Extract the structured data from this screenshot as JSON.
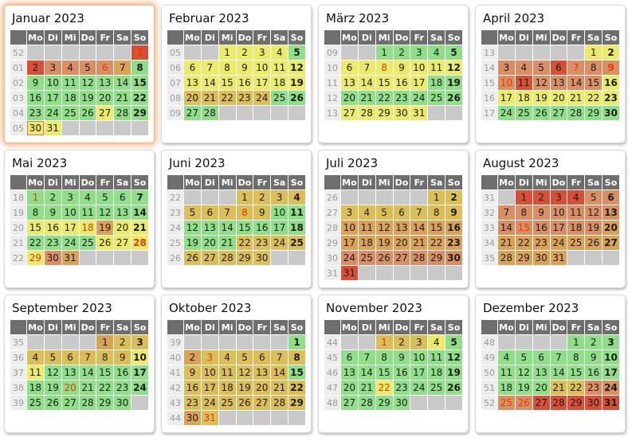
{
  "calendar": {
    "year": "2023",
    "weekday_headers": [
      "Mo",
      "Di",
      "Mi",
      "Do",
      "Fr",
      "Sa",
      "So"
    ],
    "colors": {
      "green": "#8fdf88",
      "yellow": "#ebeb6b",
      "gold": "#dcbe58",
      "tan": "#d9a257",
      "salmon": "#d98e63",
      "red": "#d94f35",
      "empty": "#c9c9c9",
      "header_bg": "#6e6e6e",
      "weekcol_bg": "#ededed",
      "holiday_text": "#e33b00",
      "today_border": "#e2705a",
      "highlight_glow": "#f6944a"
    },
    "months": [
      {
        "name": "Januar 2023",
        "highlight": true,
        "weeks": [
          {
            "wn": "52",
            "days": [
              null,
              null,
              null,
              null,
              null,
              null,
              "1|red|h"
            ]
          },
          {
            "wn": "01",
            "days": [
              "2|red",
              "3|salmon",
              "4|salmon",
              "5|salmon",
              "6|salmon|h",
              "7|tan",
              "8|green"
            ]
          },
          {
            "wn": "02",
            "days": [
              "9|green",
              "10|green",
              "11|green",
              "12|green",
              "13|green",
              "14|green",
              "15|green"
            ]
          },
          {
            "wn": "03",
            "days": [
              "16|green",
              "17|green",
              "18|green",
              "19|green",
              "20|green",
              "21|green",
              "22|green"
            ]
          },
          {
            "wn": "04",
            "days": [
              "23|green",
              "24|green",
              "25|green",
              "26|green",
              "27|yellow",
              "28|green",
              "29|green"
            ]
          },
          {
            "wn": "05",
            "days": [
              "30|yellow|t",
              "31|yellow",
              null,
              null,
              null,
              null,
              null
            ]
          }
        ]
      },
      {
        "name": "Februar 2023",
        "highlight": false,
        "weeks": [
          {
            "wn": "05",
            "days": [
              null,
              null,
              "1|yellow",
              "2|yellow",
              "3|yellow",
              "4|yellow",
              "5|green"
            ]
          },
          {
            "wn": "06",
            "days": [
              "6|yellow",
              "7|yellow",
              "8|yellow",
              "9|yellow",
              "10|yellow",
              "11|yellow",
              "12|yellow"
            ]
          },
          {
            "wn": "07",
            "days": [
              "13|yellow",
              "14|yellow",
              "15|yellow",
              "16|yellow",
              "17|yellow",
              "18|yellow",
              "19|yellow"
            ]
          },
          {
            "wn": "08",
            "days": [
              "20|gold",
              "21|gold",
              "22|gold",
              "23|gold",
              "24|gold",
              "25|green",
              "26|green"
            ]
          },
          {
            "wn": "09",
            "days": [
              "27|green",
              "28|green",
              null,
              null,
              null,
              null,
              null
            ]
          }
        ]
      },
      {
        "name": "März 2023",
        "highlight": false,
        "weeks": [
          {
            "wn": "09",
            "days": [
              null,
              null,
              "1|green",
              "2|green",
              "3|green",
              "4|green",
              "5|green"
            ]
          },
          {
            "wn": "10",
            "days": [
              "6|yellow",
              "7|yellow",
              "8|yellow|h",
              "9|yellow",
              "10|yellow",
              "11|yellow",
              "12|yellow"
            ]
          },
          {
            "wn": "11",
            "days": [
              "13|yellow",
              "14|yellow",
              "15|yellow",
              "16|yellow",
              "17|yellow",
              "18|green",
              "19|green"
            ]
          },
          {
            "wn": "12",
            "days": [
              "20|green",
              "21|green",
              "22|green",
              "23|green",
              "24|green",
              "25|green",
              "26|green"
            ]
          },
          {
            "wn": "13",
            "days": [
              "27|yellow",
              "28|yellow",
              "29|yellow",
              "30|yellow",
              "31|yellow",
              null,
              null
            ]
          }
        ]
      },
      {
        "name": "April 2023",
        "highlight": false,
        "weeks": [
          {
            "wn": "13",
            "days": [
              null,
              null,
              null,
              null,
              null,
              "1|yellow",
              "2|yellow"
            ]
          },
          {
            "wn": "14",
            "days": [
              "3|salmon",
              "4|salmon",
              "5|salmon",
              "6|red",
              "7|salmon|h",
              "8|salmon",
              "9|salmon|h"
            ]
          },
          {
            "wn": "15",
            "days": [
              "10|salmon|h",
              "11|red",
              "12|salmon",
              "13|salmon",
              "14|salmon",
              "15|salmon",
              "16|yellow"
            ]
          },
          {
            "wn": "16",
            "days": [
              "17|yellow",
              "18|yellow",
              "19|yellow",
              "20|yellow",
              "21|yellow",
              "22|yellow",
              "23|yellow"
            ]
          },
          {
            "wn": "17",
            "days": [
              "24|green",
              "25|green",
              "26|green",
              "27|green",
              "28|green",
              "29|green",
              "30|green"
            ]
          }
        ]
      },
      {
        "name": "Mai 2023",
        "highlight": false,
        "weeks": [
          {
            "wn": "18",
            "days": [
              "1|green|h",
              "2|green",
              "3|green",
              "4|green",
              "5|green",
              "6|green",
              "7|green"
            ]
          },
          {
            "wn": "19",
            "days": [
              "8|green",
              "9|green",
              "10|green",
              "11|green",
              "12|green",
              "13|green",
              "14|green"
            ]
          },
          {
            "wn": "20",
            "days": [
              "15|yellow",
              "16|yellow",
              "17|yellow",
              "18|yellow|h",
              "19|tan",
              "20|yellow",
              "21|yellow"
            ]
          },
          {
            "wn": "21",
            "days": [
              "22|green",
              "23|green",
              "24|green",
              "25|green",
              "26|yellow",
              "27|yellow",
              "28|yellow|h"
            ]
          },
          {
            "wn": "22",
            "days": [
              "29|yellow|h",
              "30|salmon",
              "31|tan",
              null,
              null,
              null,
              null
            ]
          }
        ]
      },
      {
        "name": "Juni 2023",
        "highlight": false,
        "weeks": [
          {
            "wn": "22",
            "days": [
              null,
              null,
              null,
              "1|gold",
              "2|gold",
              "3|gold",
              "4|gold"
            ]
          },
          {
            "wn": "23",
            "days": [
              "5|gold",
              "6|gold",
              "7|gold",
              "8|gold|h",
              "9|gold",
              "10|green",
              "11|green"
            ]
          },
          {
            "wn": "24",
            "days": [
              "12|green",
              "13|green",
              "14|green",
              "15|green",
              "16|green",
              "17|green",
              "18|green"
            ]
          },
          {
            "wn": "25",
            "days": [
              "19|green",
              "20|green",
              "21|green",
              "22|gold",
              "23|gold",
              "24|gold",
              "25|gold"
            ]
          },
          {
            "wn": "26",
            "days": [
              "26|gold",
              "27|gold",
              "28|gold",
              "29|gold",
              "30|gold",
              null,
              null
            ]
          }
        ]
      },
      {
        "name": "Juli 2023",
        "highlight": false,
        "weeks": [
          {
            "wn": "26",
            "days": [
              null,
              null,
              null,
              null,
              null,
              "1|gold",
              "2|gold"
            ]
          },
          {
            "wn": "27",
            "days": [
              "3|gold",
              "4|gold",
              "5|gold",
              "6|gold",
              "7|gold",
              "8|gold",
              "9|gold"
            ]
          },
          {
            "wn": "28",
            "days": [
              "10|tan",
              "11|tan",
              "12|tan",
              "13|tan",
              "14|tan",
              "15|tan",
              "16|tan"
            ]
          },
          {
            "wn": "29",
            "days": [
              "17|tan",
              "18|tan",
              "19|tan",
              "20|tan",
              "21|tan",
              "22|tan",
              "23|tan"
            ]
          },
          {
            "wn": "30",
            "days": [
              "24|salmon",
              "25|salmon",
              "26|salmon",
              "27|salmon",
              "28|salmon",
              "29|salmon",
              "30|salmon"
            ]
          },
          {
            "wn": "31",
            "days": [
              "31|red",
              null,
              null,
              null,
              null,
              null,
              null
            ]
          }
        ]
      },
      {
        "name": "August 2023",
        "highlight": false,
        "weeks": [
          {
            "wn": "31",
            "days": [
              null,
              "1|red",
              "2|red",
              "3|red",
              "4|red",
              "5|salmon",
              "6|salmon"
            ]
          },
          {
            "wn": "32",
            "days": [
              "7|salmon",
              "8|salmon",
              "9|salmon",
              "10|salmon",
              "11|salmon",
              "12|salmon",
              "13|salmon"
            ]
          },
          {
            "wn": "33",
            "days": [
              "14|salmon",
              "15|salmon|h",
              "16|salmon",
              "17|salmon",
              "18|salmon",
              "19|salmon",
              "20|tan"
            ]
          },
          {
            "wn": "34",
            "days": [
              "21|tan",
              "22|tan",
              "23|tan",
              "24|tan",
              "25|tan",
              "26|tan",
              "27|tan"
            ]
          },
          {
            "wn": "35",
            "days": [
              "28|tan",
              "29|tan",
              "30|tan",
              "31|tan",
              null,
              null,
              null
            ]
          }
        ]
      },
      {
        "name": "September 2023",
        "highlight": false,
        "weeks": [
          {
            "wn": "35",
            "days": [
              null,
              null,
              null,
              null,
              "1|tan",
              "2|gold",
              "3|gold"
            ]
          },
          {
            "wn": "36",
            "days": [
              "4|gold",
              "5|gold",
              "6|gold",
              "7|gold",
              "8|gold",
              "9|gold",
              "10|yellow"
            ]
          },
          {
            "wn": "37",
            "days": [
              "11|yellow",
              "12|green",
              "13|green",
              "14|green",
              "15|green",
              "16|green",
              "17|green"
            ]
          },
          {
            "wn": "38",
            "days": [
              "18|green",
              "19|green",
              "20|green|h",
              "21|green",
              "22|green",
              "23|green",
              "24|green"
            ]
          },
          {
            "wn": "39",
            "days": [
              "25|green",
              "26|green",
              "27|green",
              "28|green",
              "29|green",
              "30|green",
              null
            ]
          }
        ]
      },
      {
        "name": "Oktober 2023",
        "highlight": false,
        "weeks": [
          {
            "wn": "39",
            "days": [
              null,
              null,
              null,
              null,
              null,
              null,
              "1|green"
            ]
          },
          {
            "wn": "40",
            "days": [
              "2|tan",
              "3|gold|h",
              "4|gold",
              "5|gold",
              "6|gold",
              "7|gold",
              "8|gold"
            ]
          },
          {
            "wn": "41",
            "days": [
              "9|gold",
              "10|gold",
              "11|gold",
              "12|gold",
              "13|gold",
              "14|gold",
              "15|green"
            ]
          },
          {
            "wn": "42",
            "days": [
              "16|gold",
              "17|gold",
              "18|gold",
              "19|gold",
              "20|gold",
              "21|gold",
              "22|gold"
            ]
          },
          {
            "wn": "43",
            "days": [
              "23|gold",
              "24|gold",
              "25|gold",
              "26|gold",
              "27|gold",
              "28|gold",
              "29|gold"
            ]
          },
          {
            "wn": "44",
            "days": [
              "30|tan",
              "31|gold|h",
              null,
              null,
              null,
              null,
              null
            ]
          }
        ]
      },
      {
        "name": "November 2023",
        "highlight": false,
        "weeks": [
          {
            "wn": "44",
            "days": [
              null,
              null,
              "1|gold|h",
              "2|gold",
              "3|gold",
              "4|yellow",
              "5|green"
            ]
          },
          {
            "wn": "45",
            "days": [
              "6|green",
              "7|green",
              "8|green",
              "9|green",
              "10|green",
              "11|green",
              "12|green"
            ]
          },
          {
            "wn": "46",
            "days": [
              "13|green",
              "14|green",
              "15|green",
              "16|green",
              "17|green",
              "18|green",
              "19|green"
            ]
          },
          {
            "wn": "47",
            "days": [
              "20|green",
              "21|green",
              "22|yellow|h",
              "23|green",
              "24|green",
              "25|green",
              "26|green"
            ]
          },
          {
            "wn": "48",
            "days": [
              "27|green",
              "28|green",
              "29|green",
              "30|green",
              null,
              null,
              null
            ]
          }
        ]
      },
      {
        "name": "Dezember 2023",
        "highlight": false,
        "weeks": [
          {
            "wn": "48",
            "days": [
              null,
              null,
              null,
              null,
              "1|green",
              "2|green",
              "3|green"
            ]
          },
          {
            "wn": "49",
            "days": [
              "4|green",
              "5|green",
              "6|green",
              "7|green",
              "8|green",
              "9|green",
              "10|green"
            ]
          },
          {
            "wn": "50",
            "days": [
              "11|green",
              "12|green",
              "13|green",
              "14|green",
              "15|green",
              "16|green",
              "17|green"
            ]
          },
          {
            "wn": "51",
            "days": [
              "18|green",
              "19|green",
              "20|green",
              "21|gold",
              "22|gold",
              "23|salmon",
              "24|salmon"
            ]
          },
          {
            "wn": "52",
            "days": [
              "25|salmon|h",
              "26|salmon|h",
              "27|red",
              "28|red",
              "29|red",
              "30|red",
              "31|red"
            ]
          }
        ]
      }
    ]
  }
}
